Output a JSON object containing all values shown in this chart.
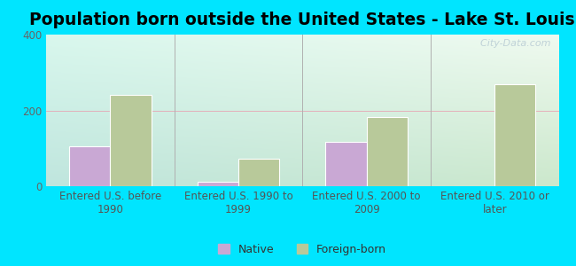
{
  "title": "Population born outside the United States - Lake St. Louis",
  "categories": [
    "Entered U.S. before\n1990",
    "Entered U.S. 1990 to\n1999",
    "Entered U.S. 2000 to\n2009",
    "Entered U.S. 2010 or\nlater"
  ],
  "native_values": [
    105,
    12,
    118,
    0
  ],
  "foreign_values": [
    240,
    72,
    182,
    268
  ],
  "native_color": "#c9a8d4",
  "foreign_color": "#b8c99a",
  "background_color": "#00e5ff",
  "ylim": [
    0,
    400
  ],
  "yticks": [
    0,
    200,
    400
  ],
  "bar_width": 0.32,
  "legend_native": "Native",
  "legend_foreign": "Foreign-born",
  "watermark": "  City-Data.com",
  "title_fontsize": 13.5,
  "tick_fontsize": 8.5,
  "grad_top": "#e8f5e9",
  "grad_bottom": "#c8e6c9",
  "grad_left": "#e0f7f4"
}
